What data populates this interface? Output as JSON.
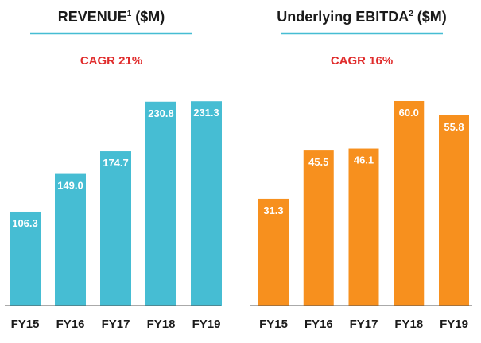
{
  "colors": {
    "revenue_bar": "#46BDD3",
    "ebitda_bar": "#F7901E",
    "underline": "#46BDD3",
    "cagr": "#E02B2B",
    "axis": "#555555"
  },
  "chart_data": [
    {
      "type": "bar",
      "title": "REVENUE",
      "title_sup": "1",
      "title_suffix": " ($M)",
      "annotation": "CAGR 21%",
      "categories": [
        "FY15",
        "FY16",
        "FY17",
        "FY18",
        "FY19"
      ],
      "values": [
        106.3,
        149.0,
        174.7,
        230.8,
        231.3
      ],
      "value_labels": [
        "106.3",
        "149.0",
        "174.7",
        "230.8",
        "231.3"
      ],
      "ylim": [
        0,
        245
      ],
      "grid": false,
      "legend": "none"
    },
    {
      "type": "bar",
      "title": "Underlying EBITDA",
      "title_sup": "2",
      "title_suffix": " ($M)",
      "annotation": "CAGR 16%",
      "categories": [
        "FY15",
        "FY16",
        "FY17",
        "FY18",
        "FY19"
      ],
      "values": [
        31.3,
        45.5,
        46.1,
        60.0,
        55.8
      ],
      "value_labels": [
        "31.3",
        "45.5",
        "46.1",
        "60.0",
        "55.8"
      ],
      "ylim": [
        0,
        63.5
      ],
      "grid": false,
      "legend": "none"
    }
  ]
}
